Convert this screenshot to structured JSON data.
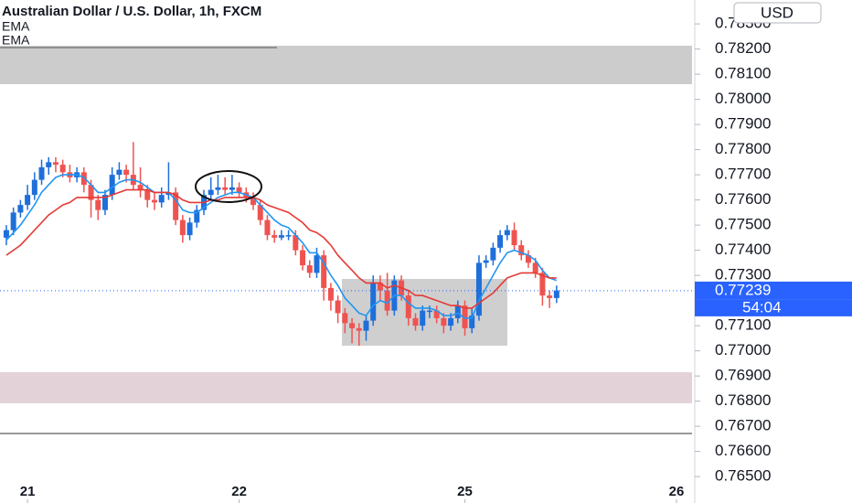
{
  "chart_data": {
    "type": "candlestick",
    "title": "Australian Dollar / U.S. Dollar, 1h, FXCM",
    "currency": "USD",
    "up_color": "#1e6fd9",
    "down_color": "#ef5350",
    "x": [
      0,
      1,
      2,
      3,
      4,
      5,
      6,
      7,
      8,
      9,
      10,
      11,
      12,
      13,
      14,
      15,
      16,
      17,
      18,
      19,
      20,
      21,
      22,
      23,
      24,
      25,
      26,
      27,
      28,
      29,
      30,
      31,
      32,
      33,
      34,
      35,
      36,
      37,
      38,
      39,
      40,
      41,
      42,
      43,
      44,
      45,
      46,
      47,
      48,
      49,
      50,
      51,
      52,
      53,
      54,
      55,
      56,
      57,
      58,
      59,
      60,
      61,
      62,
      63,
      64,
      65,
      66,
      67,
      68,
      69,
      70,
      71,
      72,
      73,
      74,
      75,
      76,
      77,
      78
    ],
    "open": [
      0.7745,
      0.7748,
      0.7755,
      0.7758,
      0.7762,
      0.7768,
      0.7773,
      0.7775,
      0.7774,
      0.7771,
      0.7769,
      0.7771,
      0.7766,
      0.776,
      0.7756,
      0.7762,
      0.777,
      0.7772,
      0.777,
      0.7766,
      0.7764,
      0.776,
      0.7759,
      0.7762,
      0.7763,
      0.7752,
      0.7746,
      0.7751,
      0.7756,
      0.7762,
      0.7764,
      0.7765,
      0.7764,
      0.7765,
      0.7763,
      0.7761,
      0.7758,
      0.7752,
      0.7746,
      0.7745,
      0.7746,
      0.7746,
      0.774,
      0.7734,
      0.7731,
      0.7738,
      0.7725,
      0.772,
      0.7715,
      0.7711,
      0.7709,
      0.7708,
      0.7712,
      0.7727,
      0.7724,
      0.7716,
      0.7728,
      0.7722,
      0.7713,
      0.771,
      0.7716,
      0.7716,
      0.7713,
      0.771,
      0.7713,
      0.7718,
      0.7709,
      0.7714,
      0.7735,
      0.7736,
      0.7741,
      0.7746,
      0.7748,
      0.7742,
      0.7738,
      0.7735,
      0.7731,
      0.7722,
      0.7721
    ],
    "high": [
      0.775,
      0.7757,
      0.776,
      0.7766,
      0.7771,
      0.7776,
      0.7777,
      0.7777,
      0.7776,
      0.7774,
      0.7773,
      0.7773,
      0.7768,
      0.7762,
      0.7764,
      0.7773,
      0.7775,
      0.7774,
      0.7783,
      0.7773,
      0.7766,
      0.7763,
      0.7765,
      0.7775,
      0.7765,
      0.7754,
      0.7753,
      0.7758,
      0.7764,
      0.7769,
      0.777,
      0.7769,
      0.777,
      0.7767,
      0.7765,
      0.7763,
      0.776,
      0.7754,
      0.7748,
      0.7748,
      0.7748,
      0.7748,
      0.7742,
      0.7736,
      0.7741,
      0.774,
      0.7727,
      0.7722,
      0.7717,
      0.7713,
      0.7711,
      0.7714,
      0.773,
      0.773,
      0.7731,
      0.773,
      0.773,
      0.7724,
      0.7715,
      0.7718,
      0.7718,
      0.7718,
      0.7715,
      0.7715,
      0.772,
      0.772,
      0.7717,
      0.7738,
      0.7738,
      0.7743,
      0.7748,
      0.775,
      0.7751,
      0.7744,
      0.774,
      0.7737,
      0.7733,
      0.7724,
      0.7726
    ],
    "low": [
      0.7742,
      0.7746,
      0.7753,
      0.7756,
      0.776,
      0.7766,
      0.777,
      0.7771,
      0.7769,
      0.7767,
      0.7767,
      0.7763,
      0.7753,
      0.7752,
      0.7754,
      0.776,
      0.7768,
      0.7767,
      0.7764,
      0.7761,
      0.7757,
      0.7756,
      0.7757,
      0.776,
      0.775,
      0.7743,
      0.7744,
      0.7749,
      0.7754,
      0.776,
      0.7762,
      0.7762,
      0.7762,
      0.7761,
      0.7759,
      0.7756,
      0.775,
      0.7744,
      0.7743,
      0.7744,
      0.7744,
      0.7738,
      0.7732,
      0.7729,
      0.7729,
      0.772,
      0.7716,
      0.7711,
      0.7707,
      0.7703,
      0.7702,
      0.7704,
      0.771,
      0.772,
      0.7714,
      0.7714,
      0.772,
      0.771,
      0.7708,
      0.7708,
      0.7713,
      0.7711,
      0.7707,
      0.7708,
      0.7711,
      0.7706,
      0.7707,
      0.7712,
      0.7733,
      0.7734,
      0.7739,
      0.7744,
      0.774,
      0.7736,
      0.7733,
      0.7729,
      0.7718,
      0.7717,
      0.7719
    ],
    "close": [
      0.7748,
      0.7755,
      0.7758,
      0.7762,
      0.7768,
      0.7773,
      0.7775,
      0.7774,
      0.7771,
      0.7769,
      0.7771,
      0.7766,
      0.776,
      0.7756,
      0.7762,
      0.777,
      0.7772,
      0.777,
      0.7766,
      0.7764,
      0.776,
      0.7759,
      0.7762,
      0.7763,
      0.7752,
      0.7746,
      0.7751,
      0.7756,
      0.7762,
      0.7764,
      0.7765,
      0.7764,
      0.7765,
      0.7763,
      0.7761,
      0.7758,
      0.7752,
      0.7746,
      0.7745,
      0.7746,
      0.7746,
      0.774,
      0.7734,
      0.7731,
      0.7738,
      0.7725,
      0.772,
      0.7715,
      0.7711,
      0.7709,
      0.7708,
      0.7712,
      0.7727,
      0.7724,
      0.7716,
      0.7728,
      0.7722,
      0.7713,
      0.771,
      0.7716,
      0.7716,
      0.7713,
      0.771,
      0.7713,
      0.7718,
      0.7709,
      0.7714,
      0.7735,
      0.7736,
      0.7741,
      0.7746,
      0.7748,
      0.7742,
      0.7738,
      0.7735,
      0.7731,
      0.7722,
      0.7721,
      0.7724
    ],
    "series": [
      {
        "name": "EMA",
        "color": "#2196f3",
        "values": [
          0.7744,
          0.7747,
          0.775,
          0.7754,
          0.7758,
          0.7763,
          0.7766,
          0.7769,
          0.777,
          0.777,
          0.777,
          0.7769,
          0.7766,
          0.7763,
          0.7763,
          0.7765,
          0.7767,
          0.7768,
          0.7768,
          0.7767,
          0.7765,
          0.7763,
          0.7763,
          0.7763,
          0.776,
          0.7756,
          0.7755,
          0.7755,
          0.7757,
          0.7759,
          0.7761,
          0.7762,
          0.7763,
          0.7763,
          0.7762,
          0.7761,
          0.7758,
          0.7755,
          0.7752,
          0.775,
          0.7749,
          0.7746,
          0.7743,
          0.7739,
          0.7739,
          0.7735,
          0.773,
          0.7726,
          0.7721,
          0.7718,
          0.7715,
          0.7714,
          0.7718,
          0.772,
          0.7719,
          0.7722,
          0.7722,
          0.7719,
          0.7717,
          0.7717,
          0.7717,
          0.7716,
          0.7714,
          0.7714,
          0.7715,
          0.7713,
          0.7713,
          0.772,
          0.7725,
          0.773,
          0.7735,
          0.7739,
          0.774,
          0.7739,
          0.7738,
          0.7736,
          0.7732,
          0.7729,
          0.7728
        ]
      },
      {
        "name": "EMA",
        "color": "#e53935",
        "values": [
          0.7738,
          0.774,
          0.7742,
          0.7745,
          0.7748,
          0.7751,
          0.7754,
          0.7756,
          0.7758,
          0.7759,
          0.7761,
          0.7761,
          0.7761,
          0.7761,
          0.7761,
          0.7762,
          0.7763,
          0.7764,
          0.7764,
          0.7764,
          0.7764,
          0.7763,
          0.7763,
          0.7763,
          0.7762,
          0.776,
          0.7759,
          0.7759,
          0.7759,
          0.776,
          0.776,
          0.7761,
          0.7761,
          0.7761,
          0.7761,
          0.7761,
          0.776,
          0.7758,
          0.7757,
          0.7756,
          0.7755,
          0.7753,
          0.7751,
          0.7748,
          0.7747,
          0.7745,
          0.7742,
          0.7738,
          0.7735,
          0.7732,
          0.7729,
          0.7727,
          0.7727,
          0.7727,
          0.7725,
          0.7726,
          0.7725,
          0.7724,
          0.7722,
          0.7722,
          0.7721,
          0.772,
          0.7719,
          0.7718,
          0.7718,
          0.7717,
          0.7717,
          0.7719,
          0.7721,
          0.7723,
          0.7726,
          0.7729,
          0.773,
          0.7731,
          0.7731,
          0.7731,
          0.773,
          0.7729,
          0.7729
        ]
      }
    ],
    "last_price": 0.77239,
    "countdown": "54:04",
    "xlim": [
      -0.9,
      97.2
    ],
    "xticks": [
      {
        "value": 3,
        "label": "21"
      },
      {
        "value": 33,
        "label": "22"
      },
      {
        "value": 65,
        "label": "25"
      },
      {
        "value": 95,
        "label": "26"
      }
    ],
    "ylim": [
      0.76395,
      0.78395
    ],
    "yticks": [
      {
        "value": 0.783,
        "label": "0.78300"
      },
      {
        "value": 0.782,
        "label": "0.78200"
      },
      {
        "value": 0.781,
        "label": "0.78100"
      },
      {
        "value": 0.78,
        "label": "0.78000"
      },
      {
        "value": 0.779,
        "label": "0.77900"
      },
      {
        "value": 0.778,
        "label": "0.77800"
      },
      {
        "value": 0.777,
        "label": "0.77700"
      },
      {
        "value": 0.776,
        "label": "0.77600"
      },
      {
        "value": 0.775,
        "label": "0.77500"
      },
      {
        "value": 0.774,
        "label": "0.77400"
      },
      {
        "value": 0.773,
        "label": "0.77300"
      },
      {
        "value": 0.771,
        "label": "0.77100"
      },
      {
        "value": 0.77,
        "label": "0.77000"
      },
      {
        "value": 0.769,
        "label": "0.76900"
      },
      {
        "value": 0.768,
        "label": "0.76800"
      },
      {
        "value": 0.767,
        "label": "0.76700"
      },
      {
        "value": 0.766,
        "label": "0.76600"
      },
      {
        "value": 0.765,
        "label": "0.76500"
      }
    ]
  }
}
